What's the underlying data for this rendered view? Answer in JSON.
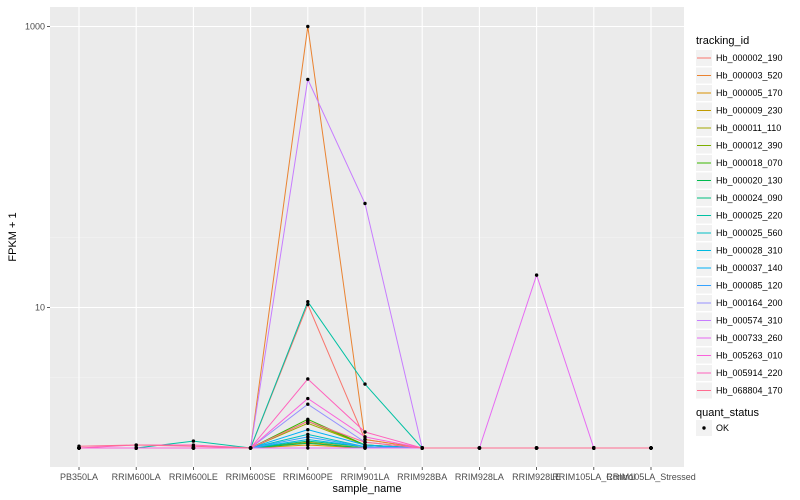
{
  "chart_data": {
    "type": "line",
    "xlabel": "sample_name",
    "ylabel": "FPKM + 1",
    "y_scale": "log10",
    "ylim": [
      1,
      1000
    ],
    "y_ticks": [
      {
        "value": 10,
        "label": "10"
      },
      {
        "value": 1000,
        "label": "1000"
      }
    ],
    "categories": [
      "PB350LA",
      "RRIM600LA",
      "RRIM600LE",
      "RRIM600SE",
      "RRIM600PE",
      "RRIM901LA",
      "RRIM928BA",
      "RRIM928LA",
      "RRIM928LE",
      "RRIM105LA_Control",
      "RRIM105LA_Stressed"
    ],
    "legend": {
      "position": "right",
      "color_title": "tracking_id",
      "shape_title": "quant_status",
      "shape_entries": [
        "OK"
      ]
    },
    "grid": true,
    "series": [
      {
        "name": "Hb_000002_190",
        "color": "#F8766D",
        "values": [
          1,
          1,
          1,
          1,
          10.5,
          1.15,
          1,
          1,
          1,
          1,
          1
        ]
      },
      {
        "name": "Hb_000003_520",
        "color": "#EA8331",
        "values": [
          1,
          1,
          1,
          1,
          1000,
          1.15,
          1,
          1,
          1,
          1,
          1
        ]
      },
      {
        "name": "Hb_000005_170",
        "color": "#D89000",
        "values": [
          1,
          1,
          1,
          1,
          1.05,
          1,
          1,
          1,
          1,
          1,
          1
        ]
      },
      {
        "name": "Hb_000009_230",
        "color": "#C09B00",
        "values": [
          1,
          1,
          1,
          1,
          1.1,
          1,
          1,
          1,
          1,
          1,
          1
        ]
      },
      {
        "name": "Hb_000011_110",
        "color": "#A3A500",
        "values": [
          1,
          1,
          1,
          1,
          1.5,
          1.05,
          1,
          1,
          1,
          1,
          1
        ]
      },
      {
        "name": "Hb_000012_390",
        "color": "#7CAE00",
        "values": [
          1,
          1,
          1,
          1,
          1.55,
          1.05,
          1,
          1,
          1,
          1,
          1
        ]
      },
      {
        "name": "Hb_000018_070",
        "color": "#39B600",
        "values": [
          1,
          1,
          1,
          1,
          1.6,
          1.05,
          1,
          1,
          1,
          1,
          1
        ]
      },
      {
        "name": "Hb_000020_130",
        "color": "#00BB4E",
        "values": [
          1,
          1,
          1,
          1,
          1.08,
          1,
          1,
          1,
          1,
          1,
          1
        ]
      },
      {
        "name": "Hb_000024_090",
        "color": "#00BF7D",
        "values": [
          1,
          1,
          1,
          1,
          1.12,
          1.02,
          1,
          1,
          1,
          1,
          1
        ]
      },
      {
        "name": "Hb_000025_220",
        "color": "#00C1A3",
        "values": [
          1,
          1,
          1.12,
          1,
          11,
          2.85,
          1,
          1,
          1,
          1,
          1
        ]
      },
      {
        "name": "Hb_000025_560",
        "color": "#00BFC4",
        "values": [
          1,
          1,
          1,
          1,
          1.25,
          1.02,
          1,
          1,
          1,
          1,
          1
        ]
      },
      {
        "name": "Hb_000028_310",
        "color": "#00BAE0",
        "values": [
          1,
          1,
          1,
          1,
          1.15,
          1.02,
          1,
          1,
          1,
          1,
          1
        ]
      },
      {
        "name": "Hb_000037_140",
        "color": "#00B0F6",
        "values": [
          1,
          1,
          1,
          1,
          1.35,
          1.05,
          1,
          1,
          1,
          1,
          1
        ]
      },
      {
        "name": "Hb_000085_120",
        "color": "#35A2FF",
        "values": [
          1,
          1,
          1,
          1,
          1.2,
          1.02,
          1,
          1,
          1,
          1,
          1
        ]
      },
      {
        "name": "Hb_000164_200",
        "color": "#9590FF",
        "values": [
          1,
          1,
          1,
          1,
          2.05,
          1.1,
          1,
          1,
          1,
          1,
          1
        ]
      },
      {
        "name": "Hb_000574_310",
        "color": "#C77CFF",
        "values": [
          1,
          1,
          1,
          1,
          420,
          55,
          1,
          1,
          1,
          1,
          1
        ]
      },
      {
        "name": "Hb_000733_260",
        "color": "#E76BF3",
        "values": [
          1,
          1,
          1,
          1,
          1,
          1,
          1,
          1,
          17,
          1,
          1
        ]
      },
      {
        "name": "Hb_005263_010",
        "color": "#FA62DB",
        "values": [
          1,
          1,
          1,
          1,
          2.25,
          1.2,
          1,
          1,
          1,
          1,
          1
        ]
      },
      {
        "name": "Hb_005914_220",
        "color": "#FF62BC",
        "values": [
          1,
          1.05,
          1.05,
          1,
          3.1,
          1.3,
          1,
          1,
          1,
          1,
          1
        ]
      },
      {
        "name": "Hb_068804_170",
        "color": "#FF6C91",
        "values": [
          1.03,
          1.05,
          1.03,
          1,
          1.55,
          1.1,
          1,
          1,
          1,
          1,
          1
        ]
      }
    ]
  }
}
